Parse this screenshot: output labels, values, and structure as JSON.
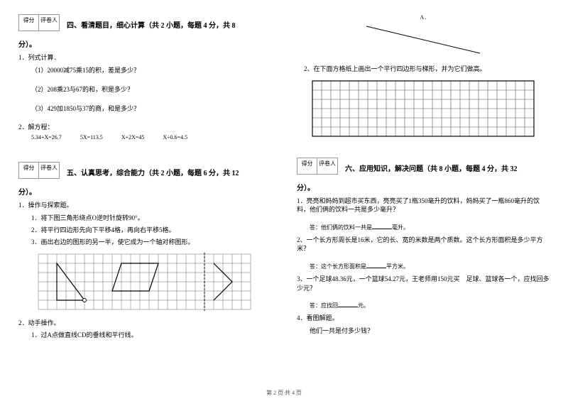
{
  "common": {
    "score_label": "得分",
    "grader_label": "评卷人",
    "fen_suffix": "分）。",
    "footer": "第 2 页 共 4 页"
  },
  "sec4": {
    "title": "四、看清题目，细心计算（共 2 小题，每题 4 分，共 8",
    "q1": "1．列式计算．",
    "q1a": "（1）20000减75乘15的积，差是多少？",
    "q1b": "（2）208乘23与67的和，积是多少？",
    "q1c": "（3）429加1850与37的商，和是多少？",
    "q2": "2．解方程：",
    "eq": [
      "5.34+X=26.7",
      "5X=113.5",
      "X+2X=45",
      "X÷0.6=4.5"
    ]
  },
  "sec5": {
    "title": "五、认真思考，综合能力（共 2 小题，每题 6 分，共 12",
    "q1": "1．操作与探索题。",
    "q1a": "1．将下图三角形绕点O逆时针旋转90°。",
    "q1b": "2．将平行四边形先向下平移4格，再向右平移5格。",
    "q1c": "3．画出右边的图形的另一半，使它成为一个轴对称图形。",
    "q2": "2．动手操作。",
    "q2a": "1．过A点做直线CD的垂线和平行线。"
  },
  "right": {
    "pointA": "A .",
    "task2": "2、在下面方格纸上画出一个平行四边形与梯形，并为它们做高。"
  },
  "sec6": {
    "title": "六、应用知识，解决问题（共 8 小题，每题 4 分，共 32",
    "q1": "1．亮亮和妈妈到超市买东西，亮亮买了1瓶350毫升的饮料，妈妈买了一瓶860毫升的饮料，他们俩的饮料一共是多少毫升？",
    "a1_prefix": "答：他们俩的饮料一共是",
    "a1_suffix": "毫升。",
    "q2": "2、一个长方形周长是16米，它的长、宽的米数是两个质数。这个长方形面积是多少平方米？",
    "a2_prefix": "答：这个长方形面积是",
    "a2_suffix": "平方米。",
    "q3": "3、一个足球48.36元，一个篮球54.27元，王老师用150元买　足球、篮球各一个，应找回多少元？",
    "a3_prefix": "答：应找回",
    "a3_suffix": "元。",
    "q4": "4．看图解题。",
    "q4a": "他们一共是付多少钱？"
  },
  "colors": {
    "line": "#000000",
    "grid": "#555555"
  }
}
